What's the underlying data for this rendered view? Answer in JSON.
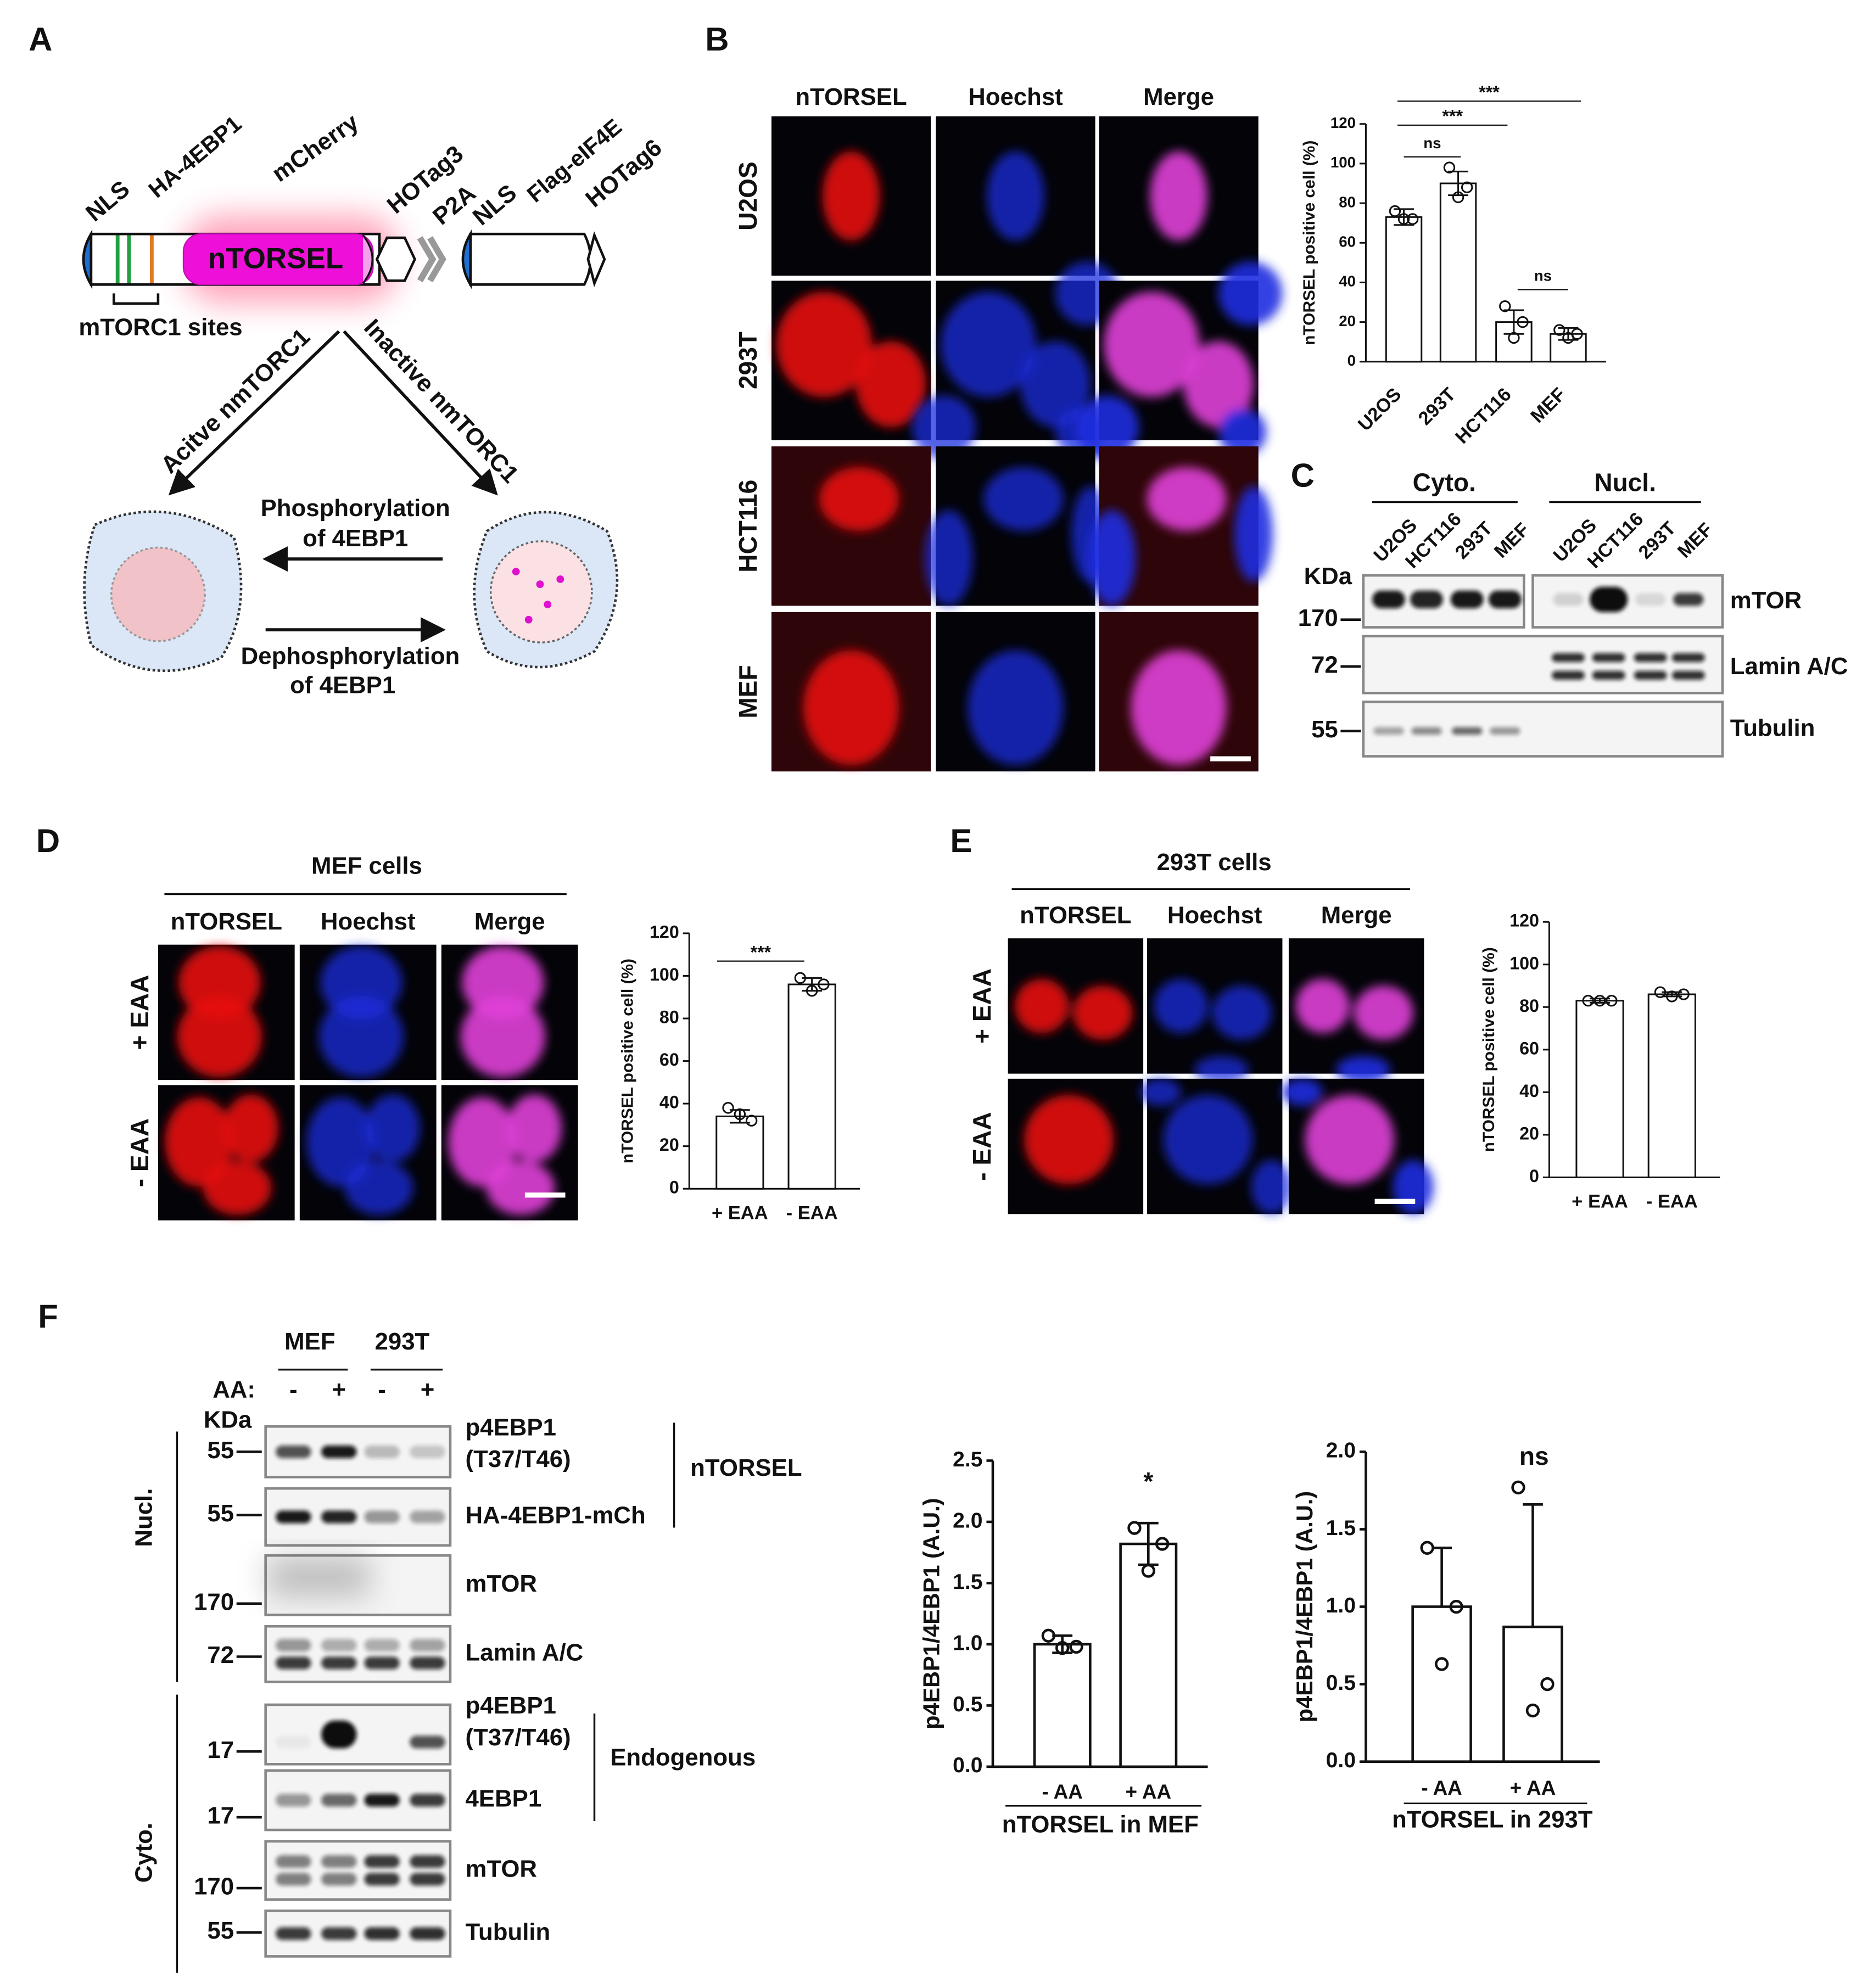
{
  "panel_labels": [
    "A",
    "B",
    "C",
    "D",
    "E",
    "F"
  ],
  "construct": {
    "nls1": "NLS",
    "ha": "HA-4EBP1",
    "mcherry": "mCherry",
    "ntorsel": "nTORSEL",
    "hotag3": "HOTag3",
    "p2a": "P2A",
    "nls2": "NLS",
    "flag": "Flag-eIF4E",
    "hotag6": "HOTag6",
    "sites": "mTORC1 sites"
  },
  "scheme": {
    "active": "Acitve nmTORC1",
    "inactive": "Inactive nmTORC1",
    "phos": [
      "Phosphorylation",
      "of 4EBP1"
    ],
    "dephos": [
      "Dephosphorylation",
      "of 4EBP1"
    ]
  },
  "imaging_b": {
    "columns": [
      "nTORSEL",
      "Hoechst",
      "Merge"
    ],
    "rows": [
      "U2OS",
      "293T",
      "HCT116",
      "MEF"
    ]
  },
  "blot_c": {
    "groups": [
      "Cyto.",
      "Nucl."
    ],
    "lanes": [
      "U2OS",
      "HCT116",
      "293T",
      "MEF"
    ],
    "unit": "KDa",
    "markers": [
      "170",
      "72",
      "55"
    ],
    "proteins": [
      "mTOR",
      "Lamin A/C",
      "Tubulin"
    ]
  },
  "imaging_d": {
    "title": "MEF cells",
    "columns": [
      "nTORSEL",
      "Hoechst",
      "Merge"
    ],
    "rows": [
      "+ EAA",
      "- EAA"
    ]
  },
  "imaging_e": {
    "title": "293T cells",
    "columns": [
      "nTORSEL",
      "Hoechst",
      "Merge"
    ],
    "rows": [
      "+ EAA",
      "- EAA"
    ]
  },
  "blot_f": {
    "groups": [
      "MEF",
      "293T"
    ],
    "treatment": "AA:",
    "lanes": [
      "-",
      "+",
      "-",
      "+"
    ],
    "unit": "KDa",
    "fractions": [
      "Nucl.",
      "Cyto."
    ],
    "constructs": [
      "nTORSEL",
      "Endogenous"
    ],
    "rows": [
      {
        "marker": "55",
        "label": [
          "p4EBP1",
          "(T37/T46)"
        ]
      },
      {
        "marker": "55",
        "label": [
          "HA-4EBP1-mCh"
        ]
      },
      {
        "marker": "170",
        "label": [
          "mTOR"
        ]
      },
      {
        "marker": "72",
        "label": [
          "Lamin A/C"
        ]
      },
      {
        "marker": "17",
        "label": [
          "p4EBP1",
          "(T37/T46)"
        ]
      },
      {
        "marker": "17",
        "label": [
          "4EBP1"
        ]
      },
      {
        "marker": "170",
        "label": [
          "mTOR"
        ]
      },
      {
        "marker": "55",
        "label": [
          "Tubulin"
        ]
      }
    ]
  },
  "chart_data": [
    {
      "type": "bar",
      "y_label": "nTORSEL positive cell (%)",
      "categories": [
        "U2OS",
        "293T",
        "HCT116",
        "MEF"
      ],
      "values": [
        73,
        90,
        20,
        14
      ],
      "errors": [
        4,
        6,
        6,
        3
      ],
      "points": [
        [
          76,
          72,
          72
        ],
        [
          98,
          88,
          83
        ],
        [
          28,
          20,
          12
        ],
        [
          16,
          14,
          12
        ]
      ],
      "ylim": [
        0,
        120
      ],
      "yticks": [
        0,
        20,
        40,
        60,
        80,
        100,
        120
      ],
      "annotations": [
        "***",
        "***",
        "ns",
        "ns"
      ]
    },
    {
      "type": "bar",
      "y_label": "nTORSEL positive cell (%)",
      "categories": [
        "+ EAA",
        "- EAA"
      ],
      "values": [
        34,
        96
      ],
      "errors": [
        3,
        3
      ],
      "points": [
        [
          38,
          32,
          35
        ],
        [
          99,
          96,
          93
        ]
      ],
      "ylim": [
        0,
        120
      ],
      "yticks": [
        0,
        20,
        40,
        60,
        80,
        100,
        120
      ],
      "annotations": [
        "***"
      ]
    },
    {
      "type": "bar",
      "y_label": "nTORSEL positive cell (%)",
      "categories": [
        "+ EAA",
        "- EAA"
      ],
      "values": [
        83,
        86
      ],
      "errors": [
        1,
        1
      ],
      "points": [
        [
          83,
          83,
          83
        ],
        [
          87,
          86,
          85
        ]
      ],
      "ylim": [
        0,
        120
      ],
      "yticks": [
        0,
        20,
        40,
        60,
        80,
        100,
        120
      ],
      "annotations": []
    },
    {
      "type": "bar",
      "y_label": "p4EBP1/4EBP1 (A.U.)",
      "x_label": "nTORSEL in MEF",
      "categories": [
        "- AA",
        "+ AA"
      ],
      "values": [
        1.0,
        1.82
      ],
      "errors": [
        0.07,
        0.17
      ],
      "points": [
        [
          1.07,
          0.98,
          0.97
        ],
        [
          1.95,
          1.82,
          1.6
        ]
      ],
      "ylim": [
        0,
        2.5
      ],
      "yticks": [
        {
          "value": 0,
          "label": "0.0"
        },
        0.5,
        {
          "value": 1,
          "label": "1.0"
        },
        1.5,
        {
          "value": 2,
          "label": "2.0"
        },
        2.5
      ],
      "annotations": [
        "*"
      ]
    },
    {
      "type": "bar",
      "y_label": "p4EBP1/4EBP1 (A.U.)",
      "x_label": "nTORSEL in 293T",
      "categories": [
        "- AA",
        "+ AA"
      ],
      "values": [
        1.0,
        0.87
      ],
      "errors": [
        0.38,
        0.79
      ],
      "error_direction": "up",
      "points": [
        [
          1.38,
          1.0,
          0.63
        ],
        [
          1.77,
          0.5,
          0.33
        ]
      ],
      "ylim": [
        0,
        2.0
      ],
      "yticks": [
        {
          "value": 0,
          "label": "0.0"
        },
        0.5,
        {
          "value": 1,
          "label": "1.0"
        },
        1.5,
        {
          "value": 2,
          "label": "2.0"
        }
      ],
      "annotations": [
        "ns"
      ]
    }
  ]
}
